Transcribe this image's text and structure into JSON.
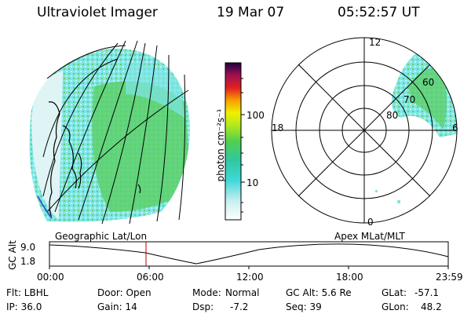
{
  "header": {
    "instrument": "Ultraviolet Imager",
    "date": "19 Mar 07",
    "time": "05:52:57 UT"
  },
  "colorbar": {
    "unit_label": "photon cm⁻²s⁻¹",
    "tick_labels": [
      "100",
      "10"
    ]
  },
  "polar": {
    "mlt_labels": {
      "top": "12",
      "left": "18",
      "right": "6",
      "bottom": "0"
    },
    "lat_labels": [
      "60",
      "70",
      "80"
    ]
  },
  "timeline": {
    "left_title": "Geographic Lat/Lon",
    "right_title": "Apex MLat/MLT",
    "axis_label": "GC Alt",
    "y_ticks": [
      "9.0",
      "1.8"
    ],
    "x_ticks": [
      "00:00",
      "06:00",
      "12:00",
      "18:00",
      "23:59"
    ]
  },
  "info": {
    "filter": "Flt: LBHL",
    "ip": "IP: 36.0",
    "door": "Door: Open",
    "gain": "Gain: 14",
    "mode_label": "Mode:",
    "mode_value": "Normal",
    "dsp_label": "Dsp:",
    "dsp_value": "-7.2",
    "gc_alt": "GC Alt: 5.6 Re",
    "seq": "Seq: 39",
    "glat_label": "GLat:",
    "glat_value": "-57.1",
    "glon_label": "GLon:",
    "glon_value": "48.2"
  },
  "colors": {
    "cyan": "#7fe6e6",
    "green": "#5cd06a",
    "red_marker": "#c00000"
  }
}
